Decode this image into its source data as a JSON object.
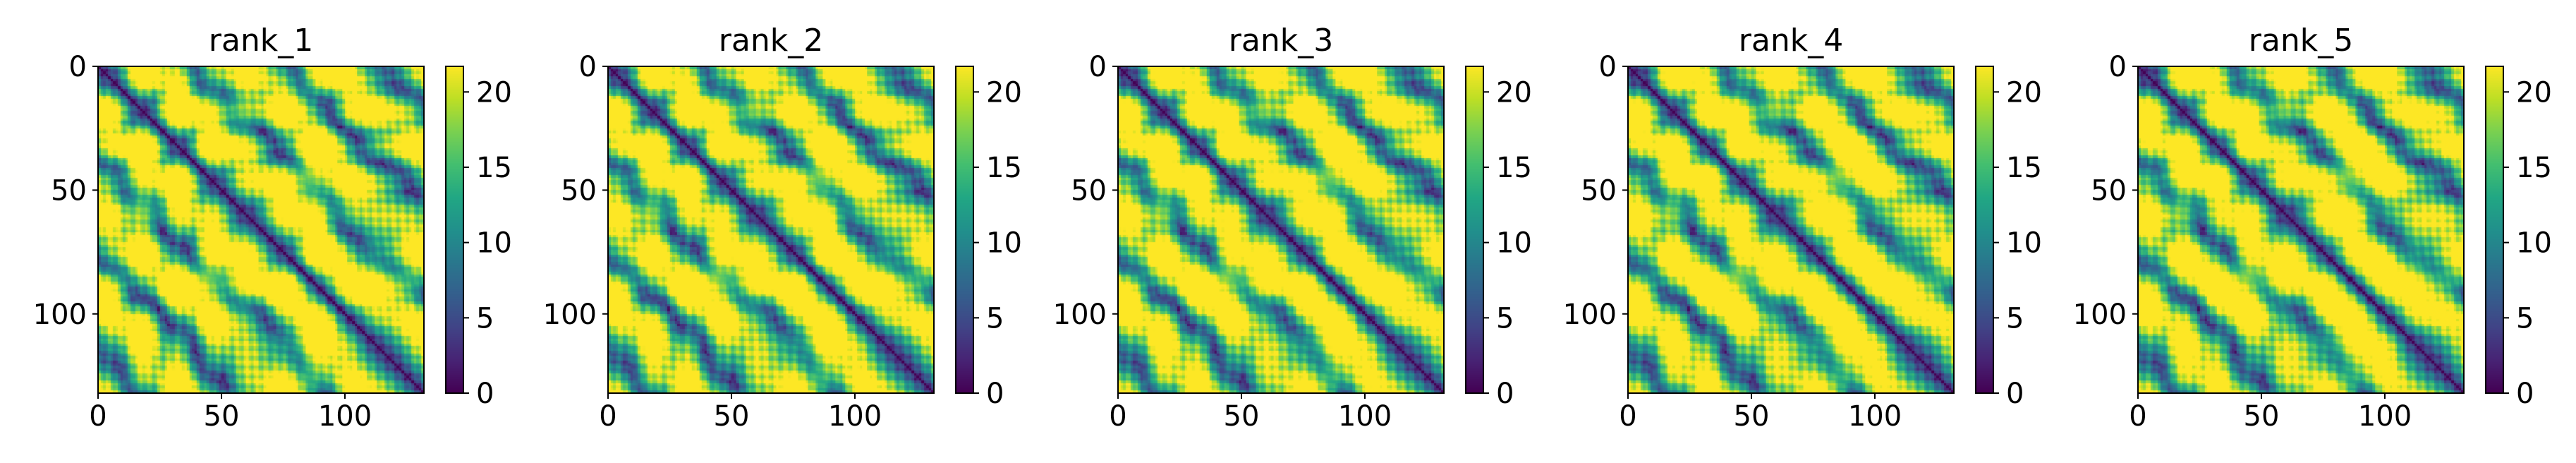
{
  "figure": {
    "colormap": "viridis",
    "colorbar_ticks": [
      "0",
      "5",
      "10",
      "15",
      "20"
    ],
    "axis_ticks": [
      "0",
      "50",
      "100"
    ]
  },
  "chart_data": [
    {
      "type": "heatmap",
      "title": "rank_1",
      "n": 132,
      "xlim": [
        0,
        132
      ],
      "ylim": [
        132,
        0
      ],
      "zlim": [
        0,
        21.7
      ],
      "xticks": [
        0,
        50,
        100
      ],
      "yticks": [
        0,
        50,
        100
      ],
      "colorbar_ticks": [
        0,
        5,
        10,
        15,
        20
      ],
      "colormap": "viridis",
      "variant": 0
    },
    {
      "type": "heatmap",
      "title": "rank_2",
      "n": 132,
      "xlim": [
        0,
        132
      ],
      "ylim": [
        132,
        0
      ],
      "zlim": [
        0,
        21.7
      ],
      "xticks": [
        0,
        50,
        100
      ],
      "yticks": [
        0,
        50,
        100
      ],
      "colorbar_ticks": [
        0,
        5,
        10,
        15,
        20
      ],
      "colormap": "viridis",
      "variant": 1
    },
    {
      "type": "heatmap",
      "title": "rank_3",
      "n": 132,
      "xlim": [
        0,
        132
      ],
      "ylim": [
        132,
        0
      ],
      "zlim": [
        0,
        21.7
      ],
      "xticks": [
        0,
        50,
        100
      ],
      "yticks": [
        0,
        50,
        100
      ],
      "colorbar_ticks": [
        0,
        5,
        10,
        15,
        20
      ],
      "colormap": "viridis",
      "variant": 2
    },
    {
      "type": "heatmap",
      "title": "rank_4",
      "n": 132,
      "xlim": [
        0,
        132
      ],
      "ylim": [
        132,
        0
      ],
      "zlim": [
        0,
        21.7
      ],
      "xticks": [
        0,
        50,
        100
      ],
      "yticks": [
        0,
        50,
        100
      ],
      "colorbar_ticks": [
        0,
        5,
        10,
        15,
        20
      ],
      "colormap": "viridis",
      "variant": 3
    },
    {
      "type": "heatmap",
      "title": "rank_5",
      "n": 132,
      "xlim": [
        0,
        132
      ],
      "ylim": [
        132,
        0
      ],
      "zlim": [
        0,
        21.7
      ],
      "xticks": [
        0,
        50,
        100
      ],
      "yticks": [
        0,
        50,
        100
      ],
      "colorbar_ticks": [
        0,
        5,
        10,
        15,
        20
      ],
      "colormap": "viridis",
      "variant": 4
    }
  ]
}
